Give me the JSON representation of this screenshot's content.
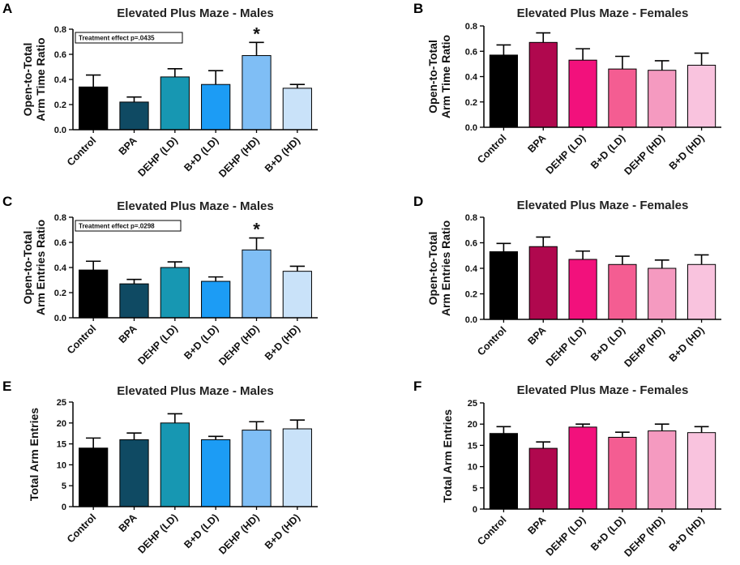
{
  "colors": {
    "males": [
      "#000000",
      "#0f4a63",
      "#1797b2",
      "#1c9cf5",
      "#7fbef5",
      "#c9e2f9"
    ],
    "females": [
      "#000000",
      "#b0084e",
      "#f2117c",
      "#f45d92",
      "#f59ac0",
      "#f9c3de"
    ]
  },
  "chart_data": [
    {
      "panel": "A",
      "type": "bar",
      "title": "Elevated Plus Maze - Males",
      "ylabel": [
        "Open-to-Total",
        "Arm Time Ratio"
      ],
      "categories": [
        "Control",
        "BPA",
        "DEHP (LD)",
        "B+D (LD)",
        "DEHP (HD)",
        "B+D (HD)"
      ],
      "values": [
        0.34,
        0.22,
        0.42,
        0.36,
        0.59,
        0.33
      ],
      "errors": [
        0.095,
        0.04,
        0.065,
        0.11,
        0.105,
        0.03
      ],
      "ylim": [
        0,
        0.8
      ],
      "yticks": [
        "0.0",
        "0.2",
        "0.4",
        "0.6",
        "0.8"
      ],
      "ytick_values": [
        0,
        0.2,
        0.4,
        0.6,
        0.8
      ],
      "annotation": "Treatment effect p=.0435",
      "significance": [
        {
          "category": "DEHP (HD)",
          "marker": "*"
        }
      ],
      "group": "males"
    },
    {
      "panel": "B",
      "type": "bar",
      "title": "Elevated Plus Maze - Females",
      "ylabel": [
        "Open-to-Total",
        "Arm Time Ratio"
      ],
      "categories": [
        "Control",
        "BPA",
        "DEHP (LD)",
        "B+D (LD)",
        "DEHP (HD)",
        "B+D (HD)"
      ],
      "values": [
        0.57,
        0.67,
        0.53,
        0.46,
        0.45,
        0.49
      ],
      "errors": [
        0.08,
        0.075,
        0.09,
        0.1,
        0.075,
        0.095
      ],
      "ylim": [
        0,
        0.8
      ],
      "yticks": [
        "0.0",
        "0.2",
        "0.4",
        "0.6",
        "0.8"
      ],
      "ytick_values": [
        0,
        0.2,
        0.4,
        0.6,
        0.8
      ],
      "significance": [],
      "group": "females"
    },
    {
      "panel": "C",
      "type": "bar",
      "title": "Elevated Plus Maze - Males",
      "ylabel": [
        "Open-to-Total",
        "Arm Entries Ratio"
      ],
      "categories": [
        "Control",
        "BPA",
        "DEHP (LD)",
        "B+D (LD)",
        "DEHP (HD)",
        "B+D (HD)"
      ],
      "values": [
        0.38,
        0.27,
        0.4,
        0.29,
        0.54,
        0.37
      ],
      "errors": [
        0.07,
        0.035,
        0.045,
        0.035,
        0.095,
        0.04
      ],
      "ylim": [
        0,
        0.8
      ],
      "yticks": [
        "0.0",
        "0.2",
        "0.4",
        "0.6",
        "0.8"
      ],
      "ytick_values": [
        0,
        0.2,
        0.4,
        0.6,
        0.8
      ],
      "annotation": "Treatment effect p=.0298",
      "significance": [
        {
          "category": "DEHP (HD)",
          "marker": "*"
        }
      ],
      "group": "males"
    },
    {
      "panel": "D",
      "type": "bar",
      "title": "Elevated Plus Maze - Females",
      "ylabel": [
        "Open-to-Total",
        "Arm Entries Ratio"
      ],
      "categories": [
        "Control",
        "BPA",
        "DEHP (LD)",
        "B+D (LD)",
        "DEHP (HD)",
        "B+D (HD)"
      ],
      "values": [
        0.53,
        0.57,
        0.47,
        0.43,
        0.4,
        0.43
      ],
      "errors": [
        0.065,
        0.075,
        0.065,
        0.065,
        0.065,
        0.075
      ],
      "ylim": [
        0,
        0.8
      ],
      "yticks": [
        "0.0",
        "0.2",
        "0.4",
        "0.6",
        "0.8"
      ],
      "ytick_values": [
        0,
        0.2,
        0.4,
        0.6,
        0.8
      ],
      "significance": [],
      "group": "females"
    },
    {
      "panel": "E",
      "type": "bar",
      "title": "Elevated Plus Maze - Males",
      "ylabel": [
        "Total Arm Entries"
      ],
      "categories": [
        "Control",
        "BPA",
        "DEHP (LD)",
        "B+D (LD)",
        "DEHP (HD)",
        "B+D (HD)"
      ],
      "values": [
        14.0,
        16.0,
        20.0,
        16.0,
        18.3,
        18.6
      ],
      "errors": [
        2.4,
        1.6,
        2.2,
        0.8,
        2.0,
        2.1
      ],
      "ylim": [
        0,
        25
      ],
      "yticks": [
        "0",
        "5",
        "10",
        "15",
        "20",
        "25"
      ],
      "ytick_values": [
        0,
        5,
        10,
        15,
        20,
        25
      ],
      "significance": [],
      "group": "males"
    },
    {
      "panel": "F",
      "type": "bar",
      "title": "Elevated Plus Maze - Females",
      "ylabel": [
        "Total Arm Entries"
      ],
      "categories": [
        "Control",
        "BPA",
        "DEHP (LD)",
        "B+D (LD)",
        "DEHP (HD)",
        "B+D (HD)"
      ],
      "values": [
        17.8,
        14.3,
        19.3,
        16.9,
        18.4,
        18.0
      ],
      "errors": [
        1.6,
        1.5,
        0.7,
        1.2,
        1.6,
        1.4
      ],
      "ylim": [
        0,
        25
      ],
      "yticks": [
        "0",
        "5",
        "10",
        "15",
        "20",
        "25"
      ],
      "ytick_values": [
        0,
        5,
        10,
        15,
        20,
        25
      ],
      "significance": [],
      "group": "females"
    }
  ]
}
